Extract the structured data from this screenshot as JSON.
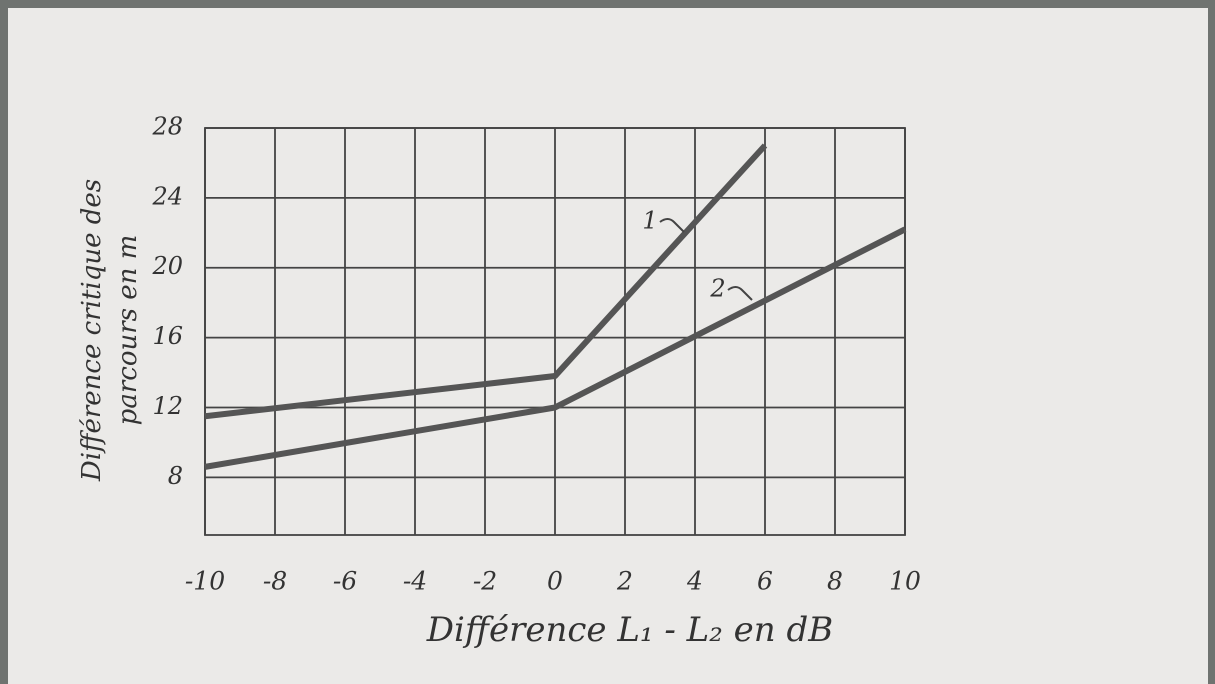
{
  "chart_data": {
    "type": "line",
    "xlabel": "Différence L₁ - L₂ en dB",
    "ylabel": [
      "Différence critique des",
      "parcours en m"
    ],
    "x": [
      -10,
      0,
      6,
      10
    ],
    "series": [
      {
        "name": "1",
        "color": "#555555",
        "values": [
          11.5,
          13.8,
          27,
          null
        ]
      },
      {
        "name": "2",
        "color": "#555555",
        "values": [
          8.6,
          12,
          null,
          22.2
        ]
      }
    ],
    "xlim": [
      -10,
      10
    ],
    "xticks": [
      -10,
      -8,
      -6,
      -4,
      -2,
      0,
      2,
      4,
      6,
      8,
      10
    ],
    "ylim": [
      4.7,
      28
    ],
    "yticks": [
      8,
      12,
      16,
      20,
      24,
      28
    ],
    "grid": true
  }
}
